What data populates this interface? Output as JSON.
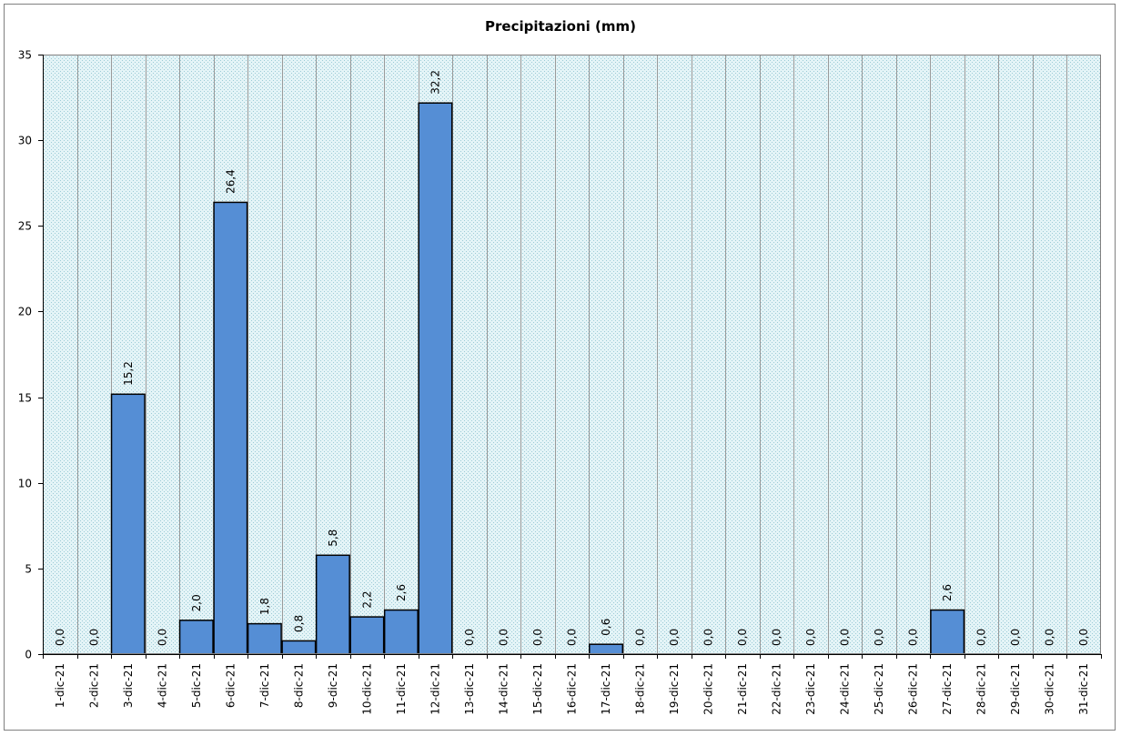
{
  "chart_data": {
    "type": "bar",
    "title": "Precipitazioni  (mm)",
    "xlabel": "",
    "ylabel": "",
    "ylim": [
      0,
      35
    ],
    "yticks": [
      0,
      5,
      10,
      15,
      20,
      25,
      30,
      35
    ],
    "grid": true,
    "categories": [
      "1-dic-21",
      "2-dic-21",
      "3-dic-21",
      "4-dic-21",
      "5-dic-21",
      "6-dic-21",
      "7-dic-21",
      "8-dic-21",
      "9-dic-21",
      "10-dic-21",
      "11-dic-21",
      "12-dic-21",
      "13-dic-21",
      "14-dic-21",
      "15-dic-21",
      "16-dic-21",
      "17-dic-21",
      "18-dic-21",
      "19-dic-21",
      "20-dic-21",
      "21-dic-21",
      "22-dic-21",
      "23-dic-21",
      "24-dic-21",
      "25-dic-21",
      "26-dic-21",
      "27-dic-21",
      "28-dic-21",
      "29-dic-21",
      "30-dic-21",
      "31-dic-21"
    ],
    "values": [
      0.0,
      0.0,
      15.2,
      0.0,
      2.0,
      26.4,
      1.8,
      0.8,
      5.8,
      2.2,
      2.6,
      32.2,
      0.0,
      0.0,
      0.0,
      0.0,
      0.6,
      0.0,
      0.0,
      0.0,
      0.0,
      0.0,
      0.0,
      0.0,
      0.0,
      0.0,
      2.6,
      0.0,
      0.0,
      0.0,
      0.0
    ],
    "data_labels": [
      "0,0",
      "0,0",
      "15,2",
      "0,0",
      "2,0",
      "26,4",
      "1,8",
      "0,8",
      "5,8",
      "2,2",
      "2,6",
      "32,2",
      "0,0",
      "0,0",
      "0,0",
      "0,0",
      "0,6",
      "0,0",
      "0,0",
      "0,0",
      "0,0",
      "0,0",
      "0,0",
      "0,0",
      "0,0",
      "0,0",
      "2,6",
      "0,0",
      "0,0",
      "0,0",
      "0,0"
    ],
    "colors": {
      "bar": "#558ed5",
      "bar_border": "#000000",
      "plot_bg": "#d6eef3",
      "grid": "#9a9a9a"
    }
  }
}
